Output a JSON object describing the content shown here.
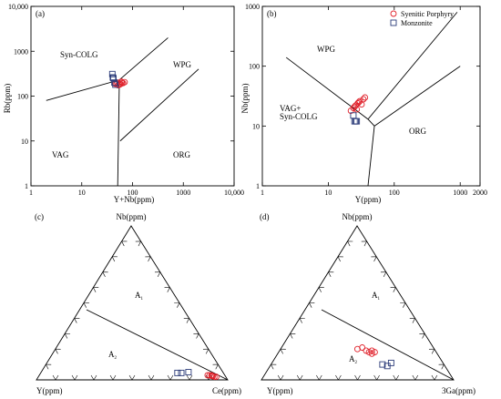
{
  "chart_data": [
    {
      "type": "scatter",
      "panel": "(a)",
      "xlabel": "Y+Nb(ppm)",
      "ylabel": "Rb(ppm)",
      "xscale": "log",
      "yscale": "log",
      "xlim": [
        1,
        10000
      ],
      "ylim": [
        1,
        10000
      ],
      "x_ticks": [
        "1",
        "10",
        "100",
        "1000",
        "10,000"
      ],
      "y_ticks": [
        "1",
        "10",
        "100",
        "1000",
        "10,000"
      ],
      "fields": [
        "Syn-COLG",
        "WPG",
        "VAG",
        "ORG"
      ],
      "series": [
        {
          "name": "Syenitic Porphyry",
          "marker": "circle",
          "color": "#e0202a",
          "x": [
            45,
            50,
            55,
            60,
            65,
            70,
            52,
            58,
            48,
            62
          ],
          "y": [
            190,
            200,
            180,
            210,
            195,
            205,
            175,
            185,
            190,
            200
          ]
        },
        {
          "name": "Monzonite",
          "marker": "square",
          "color": "#2a3a78",
          "x": [
            40,
            42,
            44,
            46,
            41
          ],
          "y": [
            310,
            250,
            200,
            180,
            260
          ]
        }
      ]
    },
    {
      "type": "scatter",
      "panel": "(b)",
      "xlabel": "Y(ppm)",
      "ylabel": "Nb(ppm)",
      "xscale": "log",
      "yscale": "log",
      "xlim": [
        1,
        2000
      ],
      "ylim": [
        1,
        1000
      ],
      "x_ticks": [
        "1",
        "10",
        "100",
        "1000",
        "2000"
      ],
      "y_ticks": [
        "1",
        "10",
        "100",
        "1000"
      ],
      "fields": [
        "WPG",
        "VAG+\nSyn-COLG",
        "ORG"
      ],
      "legend": [
        "Syenitic Porphyry",
        "Monzonite"
      ],
      "legend_position": "top-right",
      "series": [
        {
          "name": "Syenitic Porphyry",
          "marker": "circle",
          "color": "#e0202a",
          "x": [
            22,
            24,
            26,
            28,
            30,
            32,
            34,
            25,
            27,
            29,
            36
          ],
          "y": [
            18,
            20,
            22,
            24,
            26,
            23,
            28,
            21,
            19,
            25,
            30
          ]
        },
        {
          "name": "Monzonite",
          "marker": "square",
          "color": "#2a3a78",
          "x": [
            24,
            25,
            26,
            27
          ],
          "y": [
            15,
            12,
            12,
            12
          ]
        }
      ]
    },
    {
      "type": "ternary",
      "panel": "(c)",
      "apex_top": "Nb(ppm)",
      "apex_left": "Y(ppm)",
      "apex_right": "Ce(ppm)",
      "fields": [
        "A1",
        "A2"
      ],
      "series": [
        {
          "name": "Syenitic Porphyry",
          "marker": "circle",
          "color": "#e0202a",
          "points": [
            [
              0.03,
              0.09,
              0.88
            ],
            [
              0.03,
              0.08,
              0.89
            ],
            [
              0.025,
              0.07,
              0.905
            ],
            [
              0.02,
              0.06,
              0.92
            ],
            [
              0.025,
              0.065,
              0.91
            ],
            [
              0.02,
              0.05,
              0.93
            ],
            [
              0.03,
              0.07,
              0.9
            ]
          ]
        },
        {
          "name": "Monzonite",
          "marker": "square",
          "color": "#2a3a78",
          "points": [
            [
              0.045,
              0.24,
              0.715
            ],
            [
              0.045,
              0.22,
              0.735
            ],
            [
              0.05,
              0.18,
              0.77
            ]
          ]
        }
      ]
    },
    {
      "type": "ternary",
      "panel": "(d)",
      "apex_top": "Nb(ppm)",
      "apex_left": "Y(ppm)",
      "apex_right": "3Ga(ppm)",
      "fields": [
        "A1",
        "A2"
      ],
      "series": [
        {
          "name": "Syenitic Porphyry",
          "marker": "circle",
          "color": "#e0202a",
          "points": [
            [
              0.2,
              0.4,
              0.4
            ],
            [
              0.21,
              0.37,
              0.42
            ],
            [
              0.19,
              0.36,
              0.45
            ],
            [
              0.18,
              0.35,
              0.47
            ],
            [
              0.17,
              0.34,
              0.49
            ],
            [
              0.19,
              0.33,
              0.48
            ],
            [
              0.18,
              0.32,
              0.5
            ]
          ]
        },
        {
          "name": "Monzonite",
          "marker": "square",
          "color": "#2a3a78",
          "points": [
            [
              0.1,
              0.32,
              0.58
            ],
            [
              0.09,
              0.3,
              0.61
            ],
            [
              0.11,
              0.27,
              0.62
            ]
          ]
        }
      ]
    }
  ],
  "labels": {
    "a": "(a)",
    "b": "(b)",
    "c": "(c)",
    "d": "(d)",
    "a_xlabel": "Y+Nb(ppm)",
    "a_ylabel": "Rb(ppm)",
    "b_xlabel": "Y(ppm)",
    "b_ylabel": "Nb(ppm)",
    "syn_colg": "Syn-COLG",
    "wpg": "WPG",
    "vag": "VAG",
    "org": "ORG",
    "vag_syn_1": "VAG+",
    "vag_syn_2": "Syn-COLG",
    "legend_sp": "Syenitic Porphyry",
    "legend_mz": "Monzonite",
    "c_top": "Nb(ppm)",
    "c_left": "Y(ppm)",
    "c_right": "Ce(ppm)",
    "d_top": "Nb(ppm)",
    "d_left": "Y(ppm)",
    "d_right": "3Ga(ppm)",
    "a1": "A",
    "a2": "A",
    "sub1": "1",
    "sub2": "2",
    "ticks_a_x": [
      "1",
      "10",
      "100",
      "1000",
      "10,000"
    ],
    "ticks_a_y": [
      "1",
      "10",
      "100",
      "1000",
      "10,000"
    ],
    "ticks_b_x": [
      "1",
      "10",
      "100",
      "1000",
      "2000"
    ],
    "ticks_b_y": [
      "1",
      "10",
      "100",
      "1000"
    ]
  },
  "colors": {
    "porphyry": "#e0202a",
    "monzonite": "#2a3a78",
    "axis": "#000000"
  }
}
